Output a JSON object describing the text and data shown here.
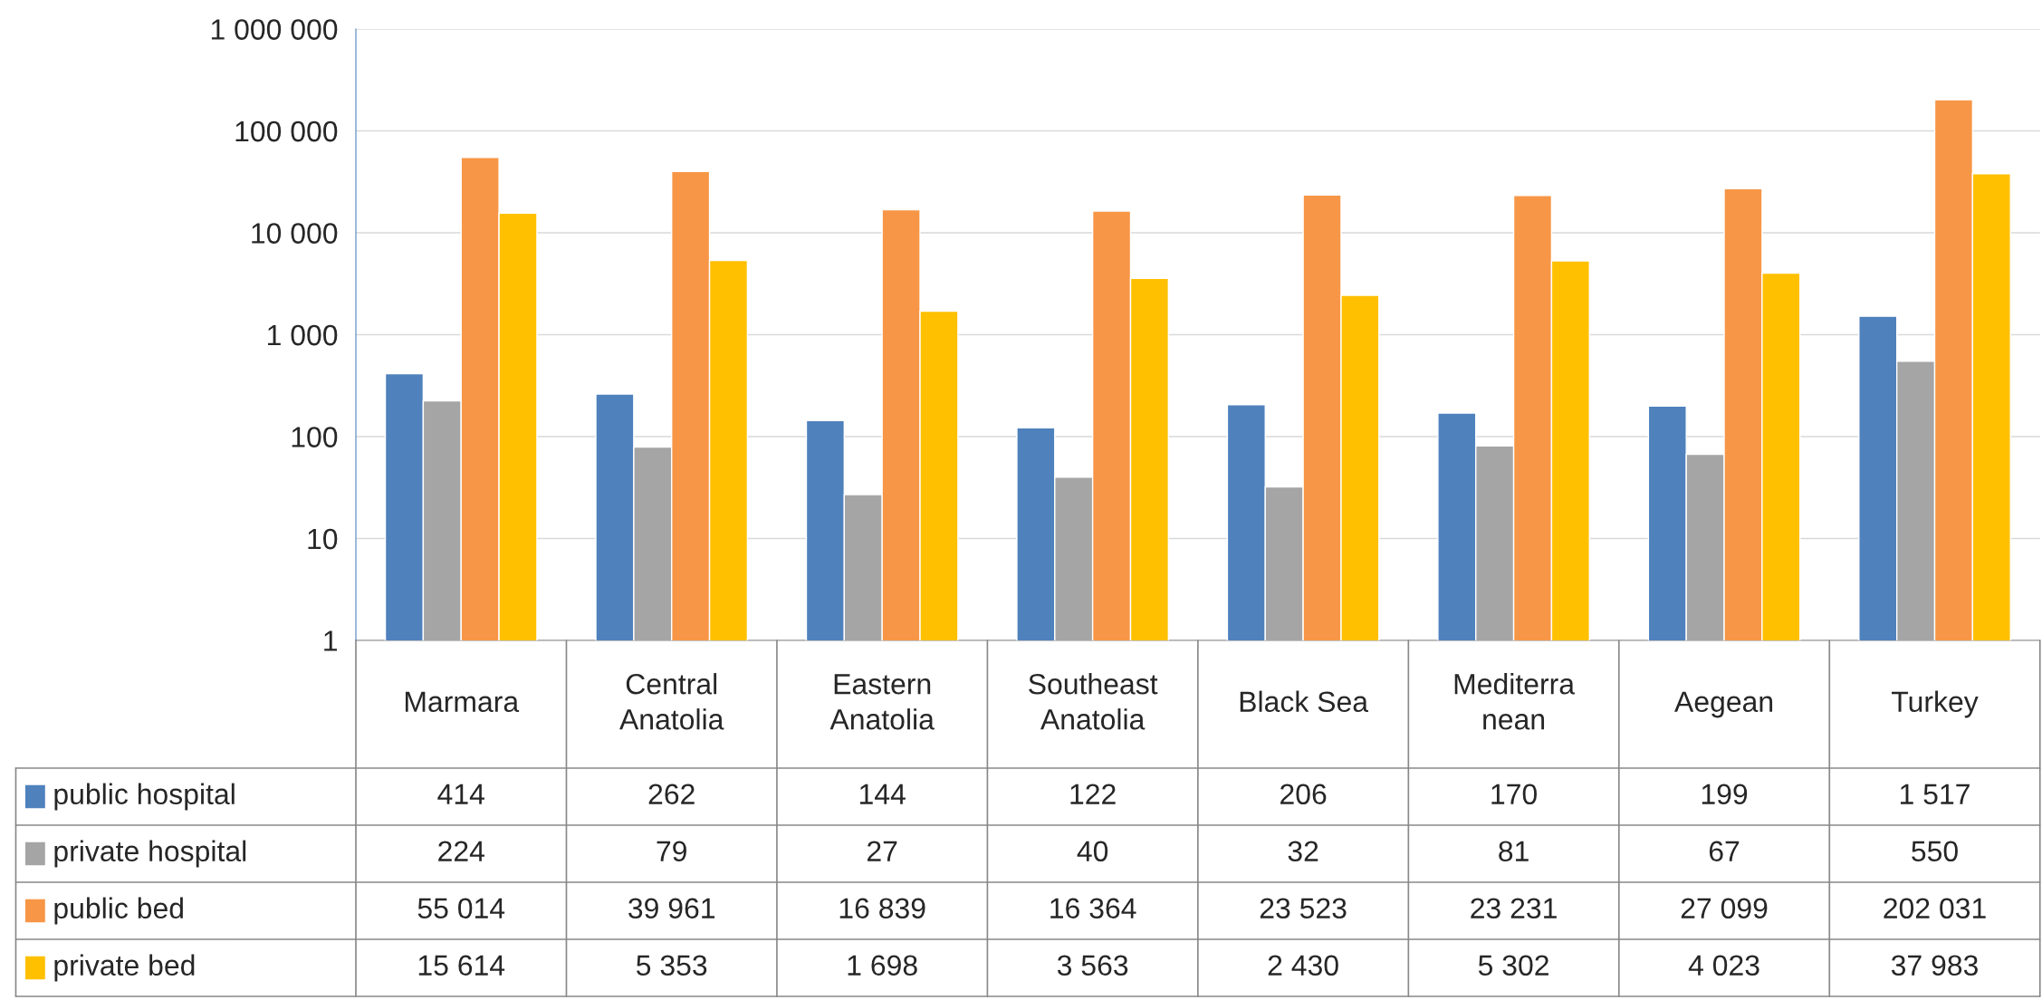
{
  "chart_data": {
    "type": "bar",
    "log": "y",
    "grid": "y",
    "legend": "bottom left",
    "categories": [
      "Marmara",
      "Central\nAnatolia",
      "Eastern\nAnatolia",
      "Southeast\nAnatolia",
      "Black Sea",
      "Mediterra\nnean",
      "Aegean",
      "Turkey"
    ],
    "ylim": [
      1,
      1000000
    ],
    "yticks": [
      1,
      10,
      100,
      {
        "value": 1000,
        "label": "1 000"
      },
      {
        "value": 10000,
        "label": "10 000"
      },
      {
        "value": 100000,
        "label": "100 000"
      },
      {
        "value": 1000000,
        "label": "1 000 000"
      }
    ],
    "series": [
      {
        "name": "public hospital",
        "color": "#4f81bd",
        "values": [
          414,
          262,
          144,
          122,
          206,
          170,
          199,
          1517
        ],
        "value_labels": [
          "414",
          "262",
          "144",
          "122",
          "206",
          "170",
          "199",
          "1 517"
        ]
      },
      {
        "name": "private hospital",
        "color": "#a5a5a5",
        "values": [
          224,
          79,
          27,
          40,
          32,
          81,
          67,
          550
        ],
        "value_labels": [
          "224",
          "79",
          "27",
          "40",
          "32",
          "81",
          "67",
          "550"
        ]
      },
      {
        "name": "public bed",
        "color": "#f79646",
        "values": [
          55014,
          39961,
          16839,
          16364,
          23523,
          23231,
          27099,
          202031
        ],
        "value_labels": [
          "55 014",
          "39 961",
          "16 839",
          "16 364",
          "23 523",
          "23 231",
          "27 099",
          "202 031"
        ]
      },
      {
        "name": "private bed",
        "color": "#ffc000",
        "values": [
          15614,
          5353,
          1698,
          3563,
          2430,
          5302,
          4023,
          37983
        ],
        "value_labels": [
          "15 614",
          "5 353",
          "1 698",
          "3 563",
          "2 430",
          "5 302",
          "4 023",
          "37 983"
        ]
      }
    ]
  }
}
